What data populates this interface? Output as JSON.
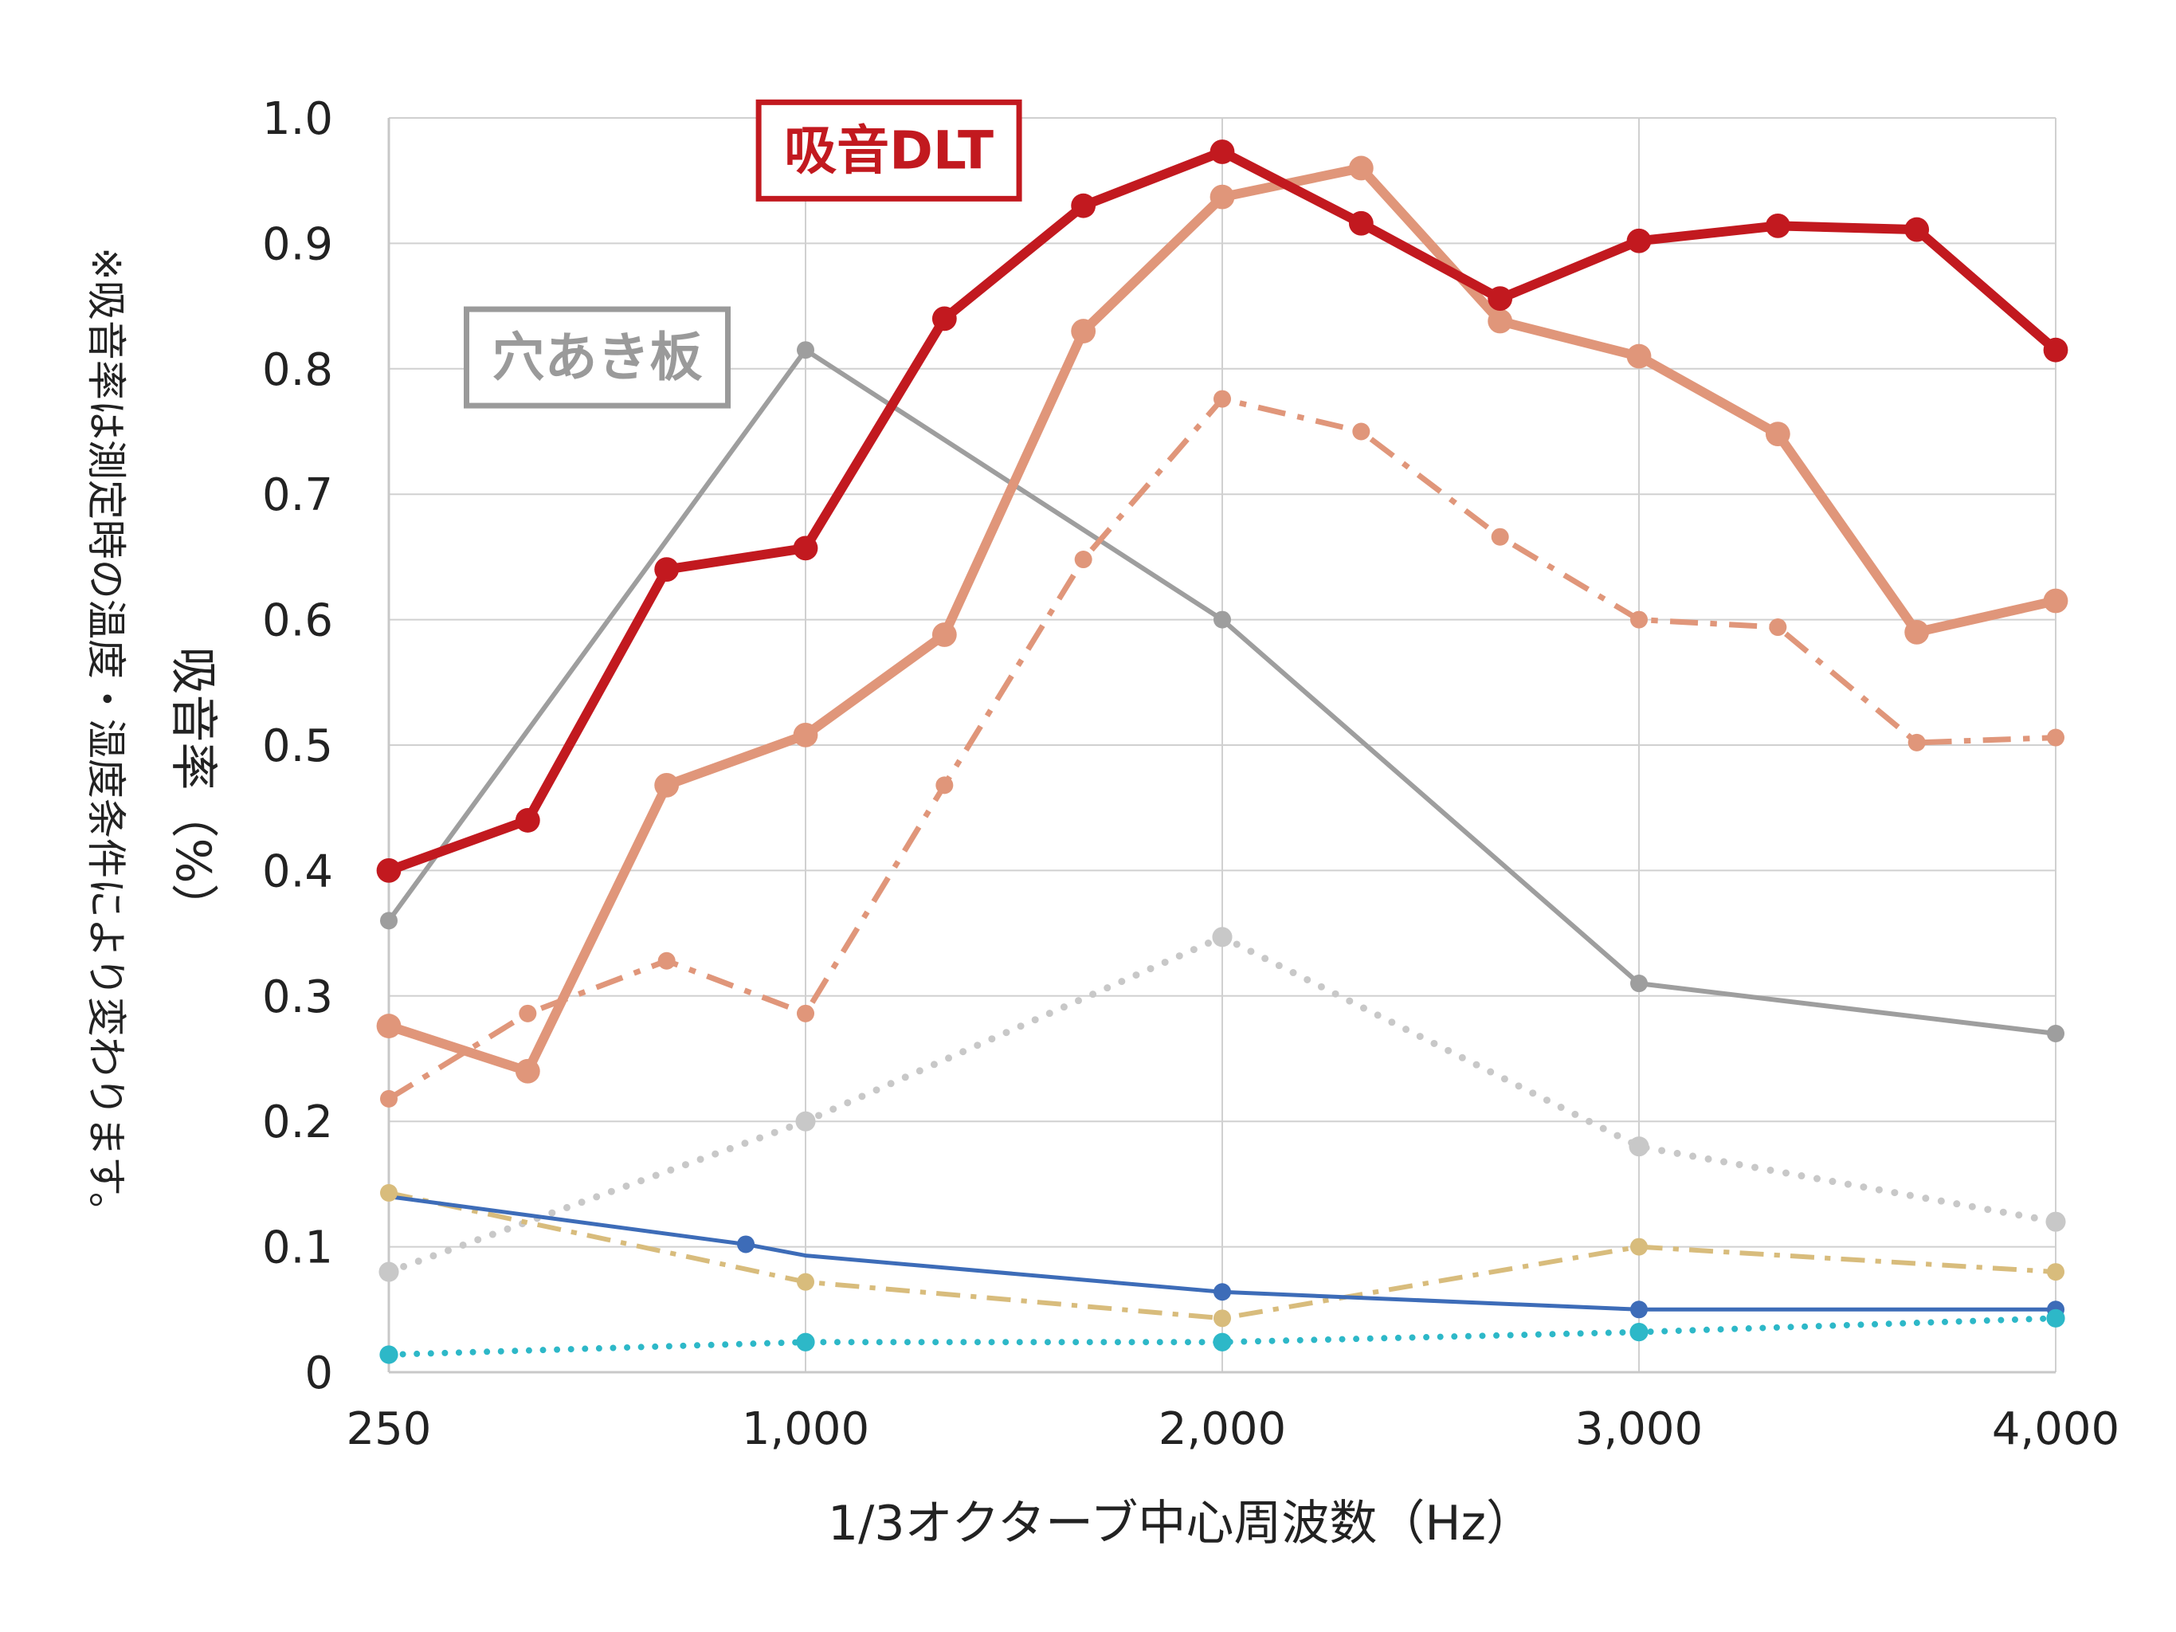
{
  "chart_data": {
    "type": "line",
    "xlabel": "1/3オクターブ中心周波数（Hz）",
    "ylabel": "吸音率（%）",
    "note": "※吸音率は測定時の温度・湿度条件により変わります。",
    "xlim": [
      0,
      12
    ],
    "ylim": [
      0,
      1.0
    ],
    "x_ticks": [
      {
        "x": 0,
        "label": "250"
      },
      {
        "x": 3,
        "label": "1,000"
      },
      {
        "x": 6,
        "label": "2,000"
      },
      {
        "x": 9,
        "label": "3,000"
      },
      {
        "x": 12,
        "label": "4,000"
      }
    ],
    "y_ticks": [
      {
        "y": 0,
        "label": "0"
      },
      {
        "y": 0.1,
        "label": "0.1"
      },
      {
        "y": 0.2,
        "label": "0.2"
      },
      {
        "y": 0.3,
        "label": "0.3"
      },
      {
        "y": 0.4,
        "label": "0.4"
      },
      {
        "y": 0.5,
        "label": "0.5"
      },
      {
        "y": 0.6,
        "label": "0.6"
      },
      {
        "y": 0.7,
        "label": "0.7"
      },
      {
        "y": 0.8,
        "label": "0.8"
      },
      {
        "y": 0.9,
        "label": "0.9"
      },
      {
        "y": 1.0,
        "label": "1.0"
      }
    ],
    "grid": true,
    "annotations": [
      {
        "text": "吸音DLT",
        "x": 3.6,
        "y": 0.975,
        "color": "#c2191f"
      },
      {
        "text": "穴あき板",
        "x": 1.5,
        "y": 0.81,
        "color": "#9a9a9a"
      }
    ],
    "series": [
      {
        "color": "#9e9e9e",
        "style": "solid",
        "width": 6,
        "x": [
          0,
          3,
          6,
          9,
          12
        ],
        "y": [
          0.36,
          0.815,
          0.6,
          0.31,
          0.27
        ]
      },
      {
        "color": "#c8c8c8",
        "style": "dotted",
        "width": 9,
        "x": [
          0,
          3,
          6,
          9,
          12
        ],
        "y": [
          0.08,
          0.2,
          0.347,
          0.18,
          0.12
        ]
      },
      {
        "color": "#e0967a",
        "style": "dashdot",
        "width": 7,
        "x": [
          0,
          1,
          2,
          3,
          4,
          5,
          6,
          7,
          8,
          9,
          10,
          11,
          12
        ],
        "y": [
          0.218,
          0.286,
          0.328,
          0.286,
          0.468,
          0.648,
          0.776,
          0.75,
          0.666,
          0.6,
          0.594,
          0.502,
          0.506
        ]
      },
      {
        "color": "#e0967a",
        "style": "solid",
        "width": 12,
        "x": [
          0,
          1,
          2,
          3,
          4,
          5,
          6,
          7,
          8,
          9,
          10,
          11,
          12
        ],
        "y": [
          0.276,
          0.24,
          0.468,
          0.508,
          0.588,
          0.83,
          0.937,
          0.96,
          0.838,
          0.81,
          0.748,
          0.59,
          0.615
        ]
      },
      {
        "color": "#c2191f",
        "style": "solid",
        "width": 12,
        "x": [
          0,
          1,
          2,
          3,
          4,
          5,
          6,
          7,
          8,
          9,
          10,
          11,
          12
        ],
        "y": [
          0.4,
          0.44,
          0.64,
          0.657,
          0.84,
          0.93,
          0.973,
          0.916,
          0.856,
          0.902,
          0.914,
          0.911,
          0.815
        ]
      },
      {
        "color": "#d8bc7c",
        "style": "dashdot",
        "width": 6,
        "x": [
          0,
          3,
          6,
          9,
          12
        ],
        "y": [
          0.143,
          0.072,
          0.043,
          0.1,
          0.08
        ]
      },
      {
        "color": "#3d6cb8",
        "style": "solid",
        "width": 5,
        "x": [
          0,
          2.57,
          3,
          6,
          9,
          12
        ],
        "y": [
          0.14,
          0.102,
          0.093,
          0.064,
          0.05,
          0.05
        ],
        "markers": [
          1,
          3,
          4,
          5
        ]
      },
      {
        "color": "#2db8c8",
        "style": "dotted",
        "width": 8,
        "x": [
          0,
          3,
          6,
          9,
          12
        ],
        "y": [
          0.014,
          0.024,
          0.024,
          0.032,
          0.043
        ]
      }
    ]
  }
}
